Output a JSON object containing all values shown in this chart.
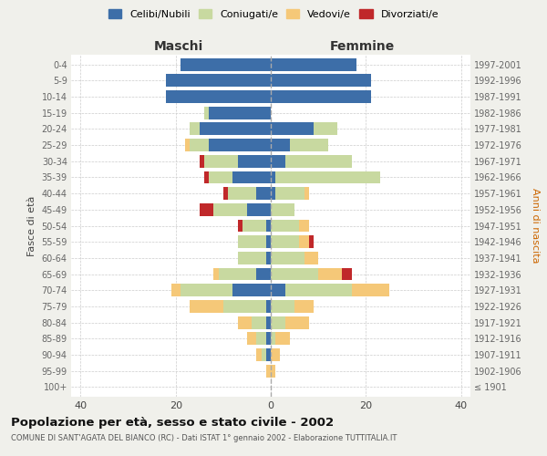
{
  "age_groups": [
    "100+",
    "95-99",
    "90-94",
    "85-89",
    "80-84",
    "75-79",
    "70-74",
    "65-69",
    "60-64",
    "55-59",
    "50-54",
    "45-49",
    "40-44",
    "35-39",
    "30-34",
    "25-29",
    "20-24",
    "15-19",
    "10-14",
    "5-9",
    "0-4"
  ],
  "birth_years": [
    "≤ 1901",
    "1902-1906",
    "1907-1911",
    "1912-1916",
    "1917-1921",
    "1922-1926",
    "1927-1931",
    "1932-1936",
    "1937-1941",
    "1942-1946",
    "1947-1951",
    "1952-1956",
    "1957-1961",
    "1962-1966",
    "1967-1971",
    "1972-1976",
    "1977-1981",
    "1982-1986",
    "1987-1991",
    "1992-1996",
    "1997-2001"
  ],
  "maschi_celibi": [
    0,
    0,
    1,
    1,
    1,
    1,
    8,
    3,
    1,
    1,
    1,
    5,
    3,
    8,
    7,
    13,
    15,
    13,
    22,
    22,
    19
  ],
  "maschi_coniugati": [
    0,
    0,
    1,
    2,
    3,
    9,
    11,
    8,
    6,
    6,
    5,
    7,
    6,
    5,
    7,
    4,
    2,
    1,
    0,
    0,
    0
  ],
  "maschi_vedovi": [
    0,
    1,
    1,
    2,
    3,
    7,
    2,
    1,
    0,
    0,
    0,
    0,
    0,
    0,
    0,
    1,
    0,
    0,
    0,
    0,
    0
  ],
  "maschi_divorziati": [
    0,
    0,
    0,
    0,
    0,
    0,
    0,
    0,
    0,
    0,
    1,
    3,
    1,
    1,
    1,
    0,
    0,
    0,
    0,
    0,
    0
  ],
  "femmine_celibi": [
    0,
    0,
    0,
    0,
    0,
    0,
    3,
    0,
    0,
    0,
    0,
    0,
    1,
    1,
    3,
    4,
    9,
    0,
    21,
    21,
    18
  ],
  "femmine_coniugati": [
    0,
    0,
    0,
    1,
    3,
    5,
    14,
    10,
    7,
    6,
    6,
    5,
    6,
    22,
    14,
    8,
    5,
    0,
    0,
    0,
    0
  ],
  "femmine_vedovi": [
    0,
    1,
    2,
    3,
    5,
    4,
    8,
    5,
    3,
    2,
    2,
    0,
    1,
    0,
    0,
    0,
    0,
    0,
    0,
    0,
    0
  ],
  "femmine_divorziati": [
    0,
    0,
    0,
    0,
    0,
    0,
    0,
    2,
    0,
    1,
    0,
    0,
    0,
    0,
    0,
    0,
    0,
    0,
    0,
    0,
    0
  ],
  "color_celibi": "#3d6ea8",
  "color_coniugati": "#c8d9a0",
  "color_vedovi": "#f5c878",
  "color_divorziati": "#c0282a",
  "title": "Popolazione per età, sesso e stato civile - 2002",
  "subtitle": "COMUNE DI SANT'AGATA DEL BIANCO (RC) - Dati ISTAT 1° gennaio 2002 - Elaborazione TUTTITALIA.IT",
  "xlabel_left": "Maschi",
  "xlabel_right": "Femmine",
  "ylabel_left": "Fasce di età",
  "ylabel_right": "Anni di nascita",
  "xlim": 42,
  "background_color": "#f0f0eb",
  "plot_bg_color": "#ffffff"
}
